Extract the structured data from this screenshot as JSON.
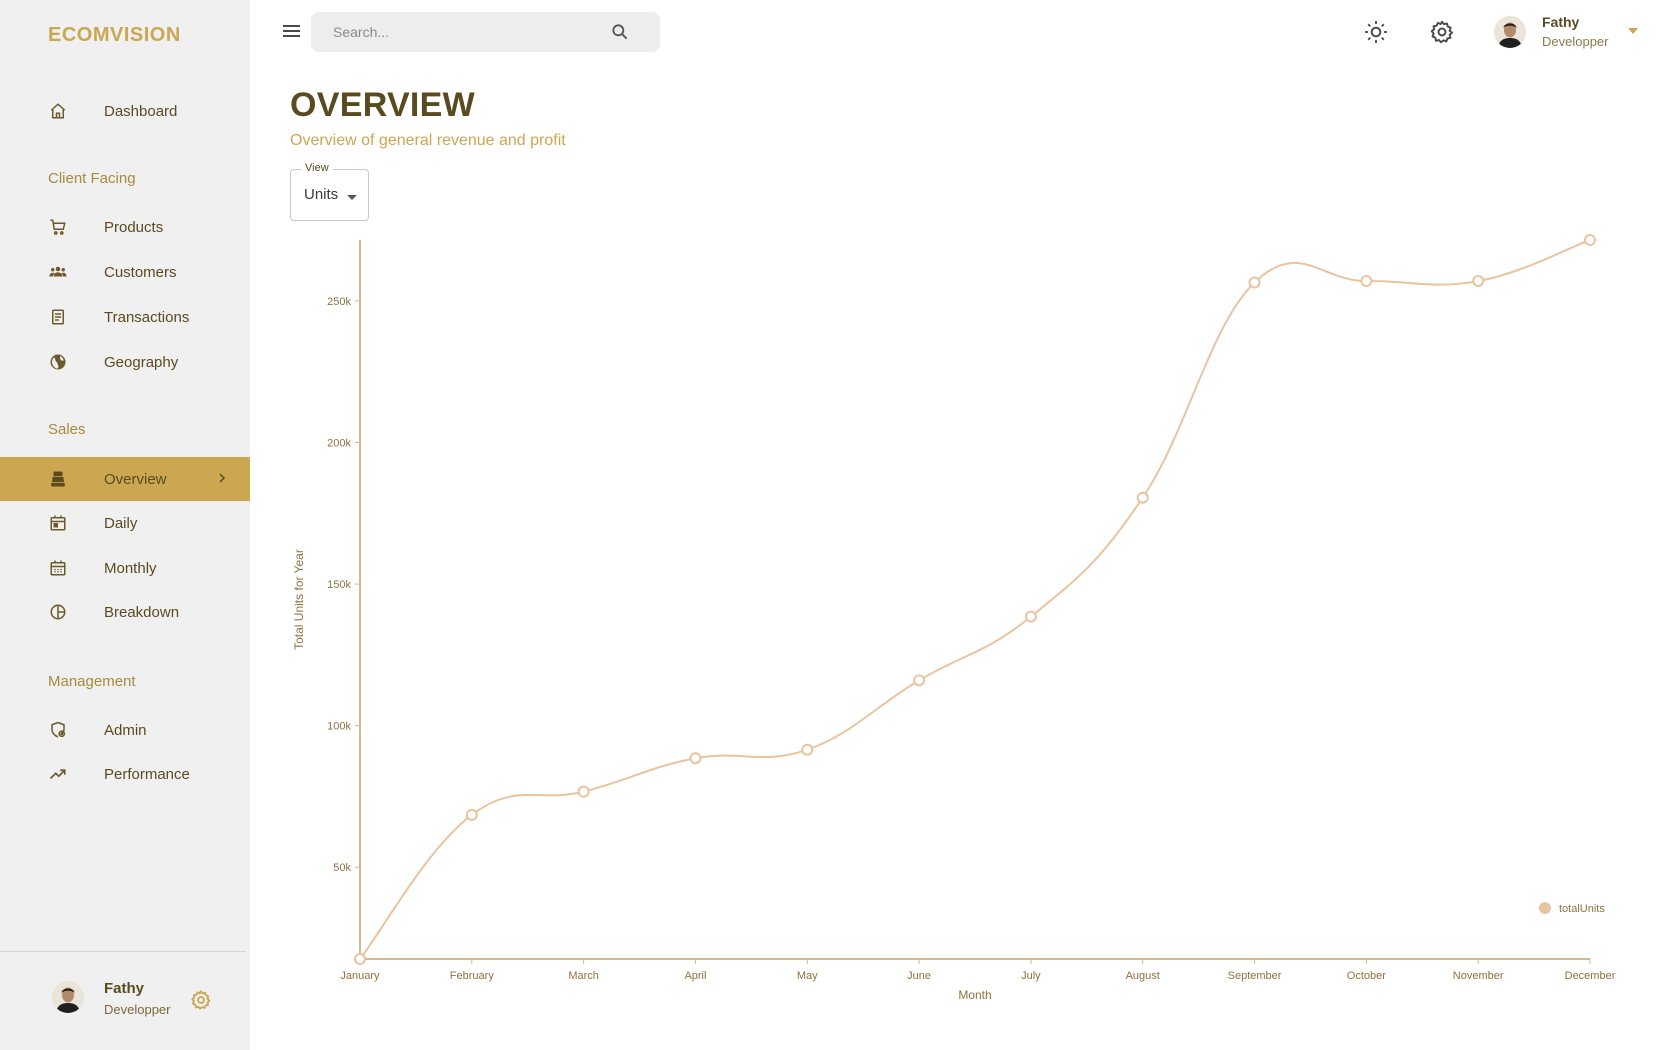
{
  "brand": "ECOMVISION",
  "sidebar": {
    "dashboard": "Dashboard",
    "section_client": "Client Facing",
    "products": "Products",
    "customers": "Customers",
    "transactions": "Transactions",
    "geography": "Geography",
    "section_sales": "Sales",
    "overview": "Overview",
    "daily": "Daily",
    "monthly": "Monthly",
    "breakdown": "Breakdown",
    "section_management": "Management",
    "admin": "Admin",
    "performance": "Performance",
    "footer_name": "Fathy",
    "footer_role": "Developper"
  },
  "topbar": {
    "search_placeholder": "Search...",
    "user_name": "Fathy",
    "user_role": "Developper"
  },
  "header": {
    "title": "OVERVIEW",
    "subtitle": "Overview of general revenue and profit"
  },
  "view_select": {
    "legend": "View",
    "value": "Units"
  },
  "colors": {
    "accent": "#cca752",
    "line": "#e8c4a0",
    "text_dark": "#5a4a1f"
  },
  "chart_data": {
    "type": "line",
    "xlabel": "Month",
    "ylabel": "Total Units for Year",
    "categories": [
      "January",
      "February",
      "March",
      "April",
      "May",
      "June",
      "July",
      "August",
      "September",
      "October",
      "November",
      "December"
    ],
    "series": [
      {
        "name": "totalUnits",
        "values": [
          17600,
          68500,
          76700,
          88500,
          91500,
          116000,
          138500,
          180500,
          256500,
          257000,
          257000,
          271500
        ]
      }
    ],
    "yticks": [
      50000,
      100000,
      150000,
      200000,
      250000
    ],
    "ytick_labels": [
      "50k",
      "100k",
      "150k",
      "200k",
      "250k"
    ],
    "ylim": [
      17600,
      271500
    ],
    "legend_position": "bottom-right",
    "grid": false
  }
}
